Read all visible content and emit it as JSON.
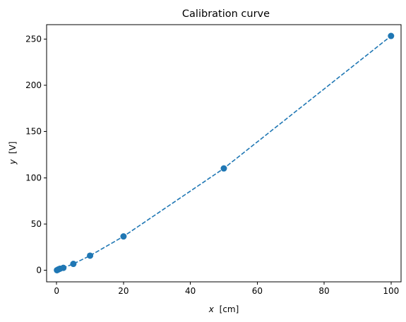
{
  "chart_data": {
    "type": "line",
    "title": "Calibration curve",
    "xlabel": {
      "var": "x",
      "unit": "[cm]"
    },
    "ylabel": {
      "var": "y",
      "unit": "[V]"
    },
    "xlim": [
      -3,
      103
    ],
    "ylim": [
      -12.5,
      265.5
    ],
    "xticks": [
      0,
      20,
      40,
      60,
      80,
      100
    ],
    "yticks": [
      0,
      50,
      100,
      150,
      200,
      250
    ],
    "grid": false,
    "series": [
      {
        "color": "#1f77b4",
        "line_style": "dashed",
        "marker": "circle",
        "points": [
          {
            "x": 0.1,
            "y": 0.1
          },
          {
            "x": 0.5,
            "y": 0.9
          },
          {
            "x": 1,
            "y": 1.7
          },
          {
            "x": 2,
            "y": 2.6
          },
          {
            "x": 5,
            "y": 6.9
          },
          {
            "x": 10,
            "y": 15.8
          },
          {
            "x": 20,
            "y": 36.6
          },
          {
            "x": 50,
            "y": 110.1
          },
          {
            "x": 100,
            "y": 253.3
          }
        ]
      }
    ]
  }
}
